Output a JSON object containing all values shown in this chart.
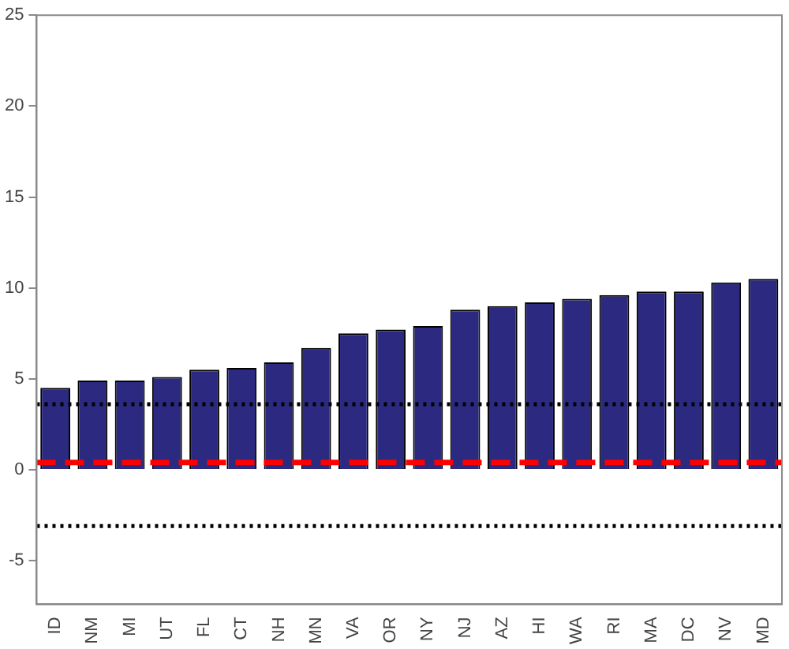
{
  "chart_data": {
    "type": "bar",
    "categories": [
      "ID",
      "NM",
      "MI",
      "UT",
      "FL",
      "CT",
      "NH",
      "MN",
      "VA",
      "OR",
      "NY",
      "NJ",
      "AZ",
      "HI",
      "WA",
      "RI",
      "MA",
      "DC",
      "NV",
      "MD"
    ],
    "values": [
      4.5,
      4.9,
      4.9,
      5.1,
      5.5,
      5.6,
      5.9,
      6.7,
      7.5,
      7.7,
      7.9,
      8.8,
      9.0,
      9.2,
      9.4,
      9.6,
      9.8,
      9.8,
      10.3,
      10.5
    ],
    "color": "#2b2a80",
    "ylim": [
      -7.4,
      25
    ],
    "yticks": [
      -5,
      0,
      5,
      10,
      15,
      20,
      25
    ],
    "grid": false,
    "legend": false,
    "ref_lines": [
      {
        "axis": "y",
        "value": 3.6,
        "color": "#000000",
        "line_style": "dotted"
      },
      {
        "axis": "y",
        "value": -3.1,
        "color": "#000000",
        "line_style": "dotted"
      },
      {
        "axis": "y",
        "value": 0.4,
        "color": "#ff0000",
        "line_style": "dashed"
      }
    ]
  }
}
